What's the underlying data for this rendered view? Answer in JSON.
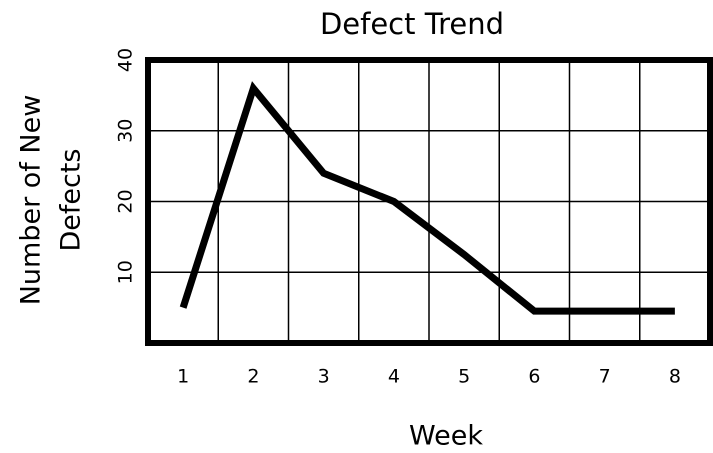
{
  "chart_data": {
    "type": "line",
    "title": "Defect Trend",
    "x_label": "Week",
    "y_label_lines": [
      "Number of New",
      "Defects"
    ],
    "categories": [
      "1",
      "2",
      "3",
      "4",
      "5",
      "6",
      "7",
      "8"
    ],
    "series": [
      {
        "color": "#000000",
        "values": [
          5,
          36,
          24,
          20,
          12.5,
          4.5,
          4.5,
          4.5
        ]
      }
    ],
    "ylim": [
      0,
      40
    ],
    "yticks": [
      10,
      20,
      30,
      40
    ],
    "grid": true
  }
}
